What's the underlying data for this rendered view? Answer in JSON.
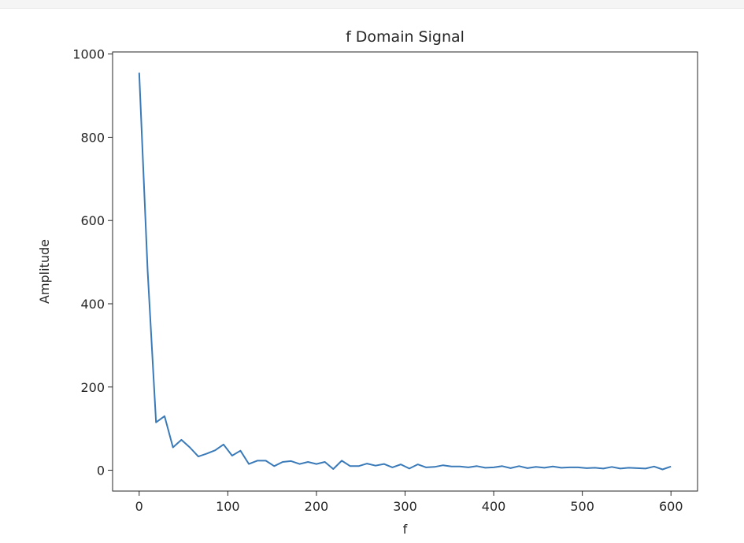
{
  "chart_data": {
    "type": "line",
    "title": "f Domain Signal",
    "xlabel": "f",
    "ylabel": "Amplitude",
    "xlim": [
      -30,
      630
    ],
    "ylim": [
      -50,
      1005
    ],
    "xticks": [
      0,
      100,
      200,
      300,
      400,
      500,
      600
    ],
    "yticks": [
      0,
      200,
      400,
      600,
      800,
      1000
    ],
    "grid": false,
    "line_color": "#3a7ab8",
    "series": [
      {
        "x": [
          0,
          9.5,
          19,
          28.6,
          38.1,
          47.6,
          57.1,
          66.7,
          76.2,
          85.7,
          95.2,
          104.8,
          114.3,
          123.8,
          133.3,
          142.9,
          152.4,
          161.9,
          171.4,
          181,
          190.5,
          200,
          209.5,
          219,
          228.6,
          238.1,
          247.6,
          257.1,
          266.7,
          276.2,
          285.7,
          295.2,
          304.8,
          314.3,
          323.8,
          333.3,
          342.9,
          352.4,
          361.9,
          371.4,
          381,
          390.5,
          400,
          409.5,
          419,
          428.6,
          438.1,
          447.6,
          457.1,
          466.7,
          476.2,
          485.7,
          495.2,
          504.8,
          514.3,
          523.8,
          533.3,
          542.9,
          552.4,
          561.9,
          571.4,
          581,
          590.5,
          600
        ],
        "values": [
          955,
          480,
          115,
          130,
          55,
          73,
          55,
          33,
          40,
          48,
          62,
          35,
          47,
          15,
          23,
          23,
          10,
          20,
          22,
          15,
          20,
          15,
          20,
          3,
          23,
          10,
          10,
          16,
          11,
          15,
          7,
          14,
          4,
          14,
          7,
          8,
          12,
          9,
          9,
          7,
          10,
          6,
          7,
          10,
          5,
          10,
          5,
          8,
          6,
          9,
          6,
          7,
          7,
          5,
          6,
          4,
          8,
          4,
          6,
          5,
          4,
          9,
          2,
          9
        ]
      }
    ]
  }
}
